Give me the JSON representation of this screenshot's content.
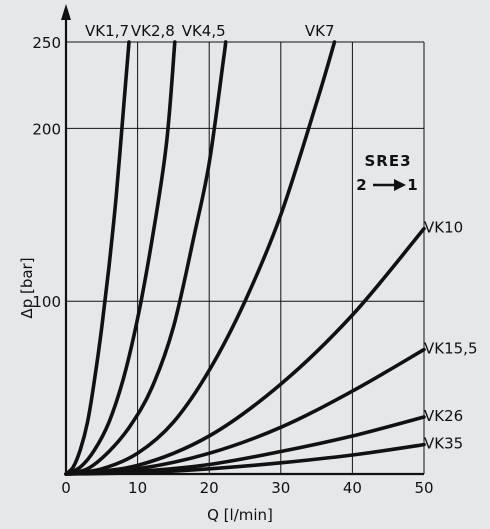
{
  "chart_data": {
    "type": "line",
    "xlabel": "Q [l/min]",
    "ylabel": "Δp [bar]",
    "xlim": [
      0,
      50
    ],
    "ylim": [
      0,
      250
    ],
    "x_ticks": [
      0,
      10,
      20,
      30,
      40,
      50
    ],
    "y_ticks": [
      100,
      200,
      250
    ],
    "x_tick_labels": [
      "0",
      "10",
      "20",
      "30",
      "40",
      "50"
    ],
    "y_tick_labels": [
      "100",
      "200",
      "250"
    ],
    "grid": true,
    "annotation": {
      "line1": "SRE3",
      "line2_from": "2",
      "line2_to": "1"
    },
    "series": [
      {
        "name": "VK1,7",
        "x": [
          0,
          1,
          2,
          3,
          4,
          5,
          6,
          7,
          8,
          8.8
        ],
        "y": [
          0,
          4,
          14,
          30,
          55,
          85,
          120,
          160,
          210,
          250
        ]
      },
      {
        "name": "VK2,8",
        "x": [
          0,
          2,
          4,
          6,
          8,
          10,
          12,
          14,
          15.2
        ],
        "y": [
          0,
          4,
          14,
          30,
          55,
          90,
          135,
          190,
          250
        ]
      },
      {
        "name": "VK4,5",
        "x": [
          0,
          3,
          6,
          9,
          12,
          15,
          18,
          20,
          22,
          22.3
        ],
        "y": [
          0,
          3,
          13,
          28,
          50,
          85,
          140,
          180,
          240,
          250
        ]
      },
      {
        "name": "VK7",
        "x": [
          0,
          5,
          10,
          15,
          20,
          25,
          30,
          35,
          37.5
        ],
        "y": [
          0,
          3,
          12,
          30,
          60,
          100,
          150,
          215,
          250
        ]
      },
      {
        "name": "VK10",
        "x": [
          0,
          10,
          20,
          30,
          40,
          50
        ],
        "y": [
          0,
          5,
          22,
          52,
          92,
          142
        ]
      },
      {
        "name": "VK15,5",
        "x": [
          0,
          10,
          20,
          30,
          40,
          50
        ],
        "y": [
          0,
          3,
          12,
          27,
          48,
          72
        ]
      },
      {
        "name": "VK26",
        "x": [
          0,
          10,
          20,
          30,
          40,
          50
        ],
        "y": [
          0,
          1.5,
          5.5,
          13,
          22,
          33
        ]
      },
      {
        "name": "VK35",
        "x": [
          0,
          10,
          20,
          30,
          40,
          50
        ],
        "y": [
          0,
          0.8,
          3,
          6.5,
          11,
          17
        ]
      }
    ]
  }
}
